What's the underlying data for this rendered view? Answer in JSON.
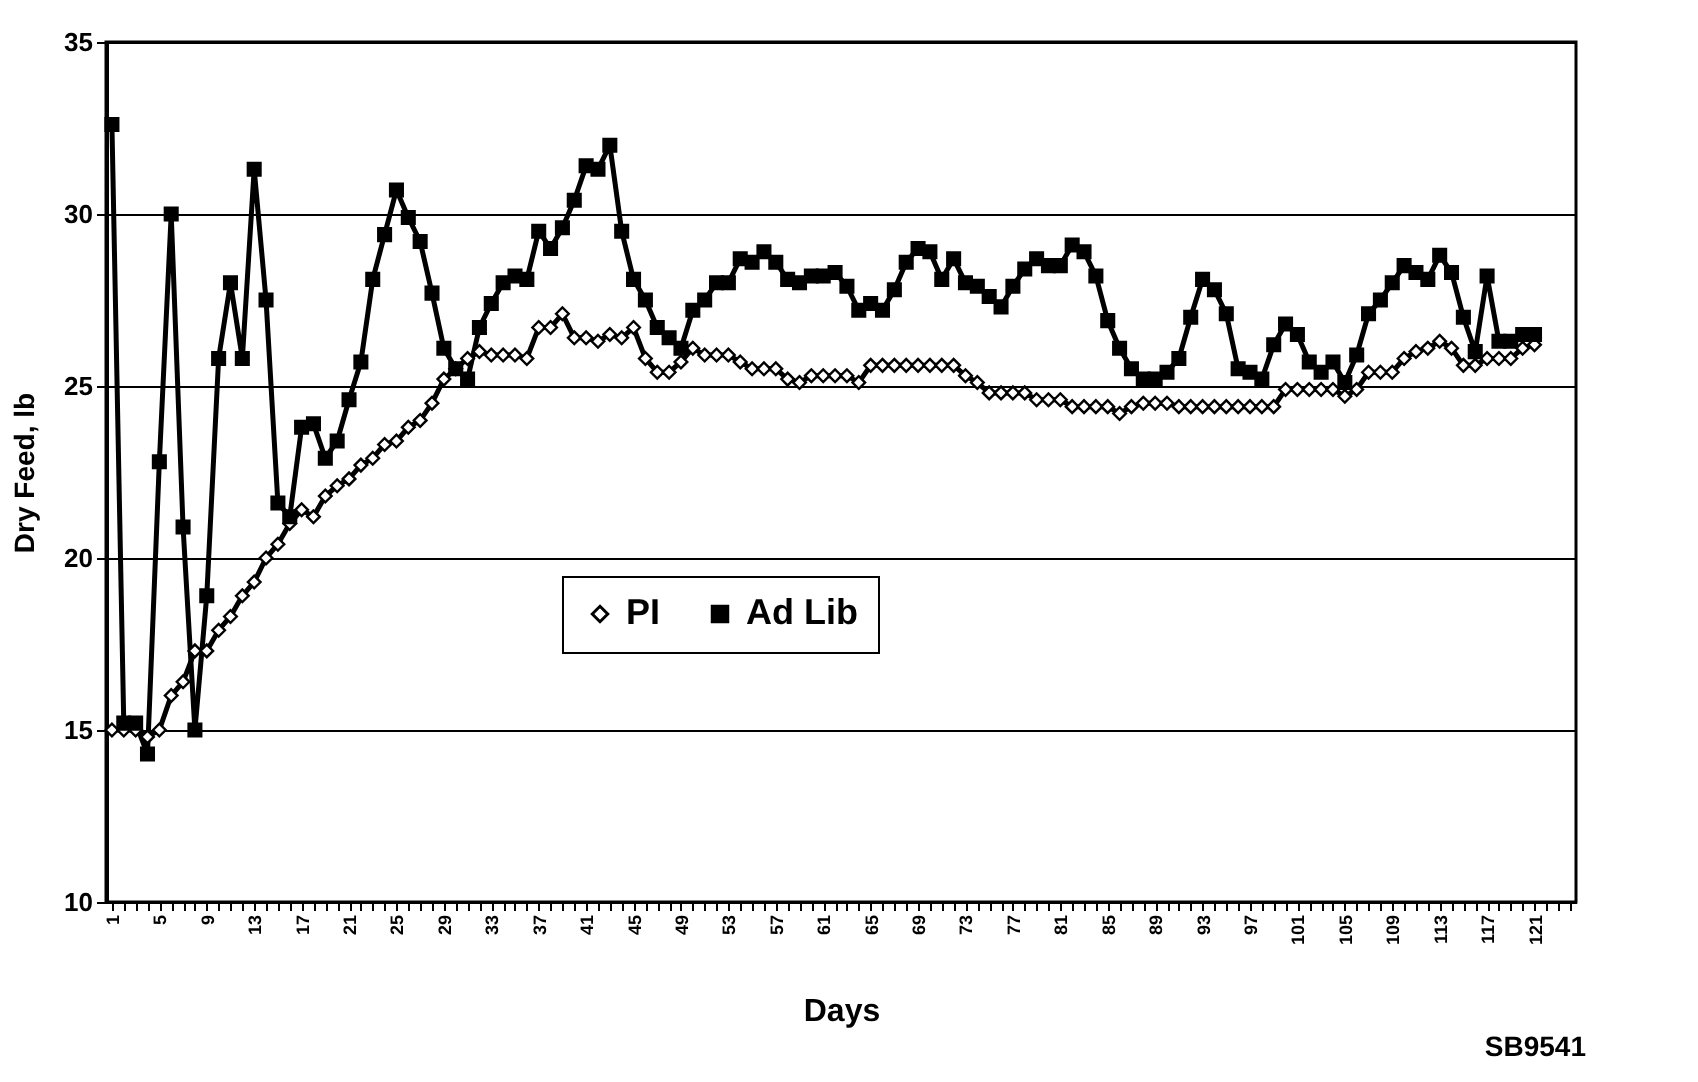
{
  "chart_data": {
    "type": "line",
    "xlabel": "Days",
    "ylabel": "Dry Feed, lb",
    "categories": [
      "1",
      null,
      null,
      null,
      "5",
      null,
      null,
      null,
      "9",
      null,
      null,
      null,
      "13",
      null,
      null,
      null,
      "17",
      null,
      null,
      null,
      "21",
      null,
      null,
      null,
      "25",
      null,
      null,
      null,
      "29",
      null,
      null,
      null,
      "33",
      null,
      null,
      null,
      "37",
      null,
      null,
      null,
      "41",
      null,
      null,
      null,
      "45",
      null,
      null,
      null,
      "49",
      null,
      null,
      null,
      "53",
      null,
      null,
      null,
      "57",
      null,
      null,
      null,
      "61",
      null,
      null,
      null,
      "65",
      null,
      null,
      null,
      "69",
      null,
      null,
      null,
      "73",
      null,
      null,
      null,
      "77",
      null,
      null,
      null,
      "81",
      null,
      null,
      null,
      "85",
      null,
      null,
      null,
      "89",
      null,
      null,
      null,
      "93",
      null,
      null,
      null,
      "97",
      null,
      null,
      null,
      "101",
      null,
      null,
      null,
      "105",
      null,
      null,
      null,
      "109",
      null,
      null,
      null,
      "113",
      null,
      null,
      null,
      "117",
      null,
      null,
      null,
      "121",
      null,
      null,
      null
    ],
    "series": [
      {
        "name": "PI",
        "color": "#000000",
        "marker": "diamond",
        "values": [
          15.0,
          15.0,
          15.0,
          14.8,
          15.0,
          16.0,
          16.4,
          17.3,
          17.3,
          17.9,
          18.3,
          18.9,
          19.3,
          20.0,
          20.4,
          21.0,
          21.4,
          21.2,
          21.8,
          22.1,
          22.3,
          22.7,
          22.9,
          23.3,
          23.4,
          23.8,
          24.0,
          24.5,
          25.2,
          25.5,
          25.8,
          26.0,
          25.9,
          25.9,
          25.9,
          25.8,
          26.7,
          26.7,
          27.1,
          26.4,
          26.4,
          26.3,
          26.5,
          26.4,
          26.7,
          25.8,
          25.4,
          25.4,
          25.7,
          26.1,
          25.9,
          25.9,
          25.9,
          25.7,
          25.5,
          25.5,
          25.5,
          25.2,
          25.1,
          25.3,
          25.3,
          25.3,
          25.3,
          25.1,
          25.6,
          25.6,
          25.6,
          25.6,
          25.6,
          25.6,
          25.6,
          25.6,
          25.3,
          25.1,
          24.8,
          24.8,
          24.8,
          24.8,
          24.6,
          24.6,
          24.6,
          24.4,
          24.4,
          24.4,
          24.4,
          24.2,
          24.4,
          24.5,
          24.5,
          24.5,
          24.4,
          24.4,
          24.4,
          24.4,
          24.4,
          24.4,
          24.4,
          24.4,
          24.4,
          24.9,
          24.9,
          24.9,
          24.9,
          24.9,
          24.7,
          24.9,
          25.4,
          25.4,
          25.4,
          25.8,
          26.0,
          26.1,
          26.3,
          26.1,
          25.6,
          25.6,
          25.8,
          25.8,
          25.8,
          26.1,
          26.2,
          null,
          null,
          null
        ]
      },
      {
        "name": "Ad Lib",
        "color": "#000000",
        "marker": "square",
        "values": [
          32.6,
          15.2,
          15.2,
          14.3,
          22.8,
          30.0,
          20.9,
          15.0,
          18.9,
          25.8,
          28.0,
          25.8,
          31.3,
          27.5,
          21.6,
          21.2,
          23.8,
          23.9,
          22.9,
          23.4,
          24.6,
          25.7,
          28.1,
          29.4,
          30.7,
          29.9,
          29.2,
          27.7,
          26.1,
          25.5,
          25.2,
          26.7,
          27.4,
          28.0,
          28.2,
          28.1,
          29.5,
          29.0,
          29.6,
          30.4,
          31.4,
          31.3,
          32.0,
          29.5,
          28.1,
          27.5,
          26.7,
          26.4,
          26.1,
          27.2,
          27.5,
          28.0,
          28.0,
          28.7,
          28.6,
          28.9,
          28.6,
          28.1,
          28.0,
          28.2,
          28.2,
          28.3,
          27.9,
          27.2,
          27.4,
          27.2,
          27.8,
          28.6,
          29.0,
          28.9,
          28.1,
          28.7,
          28.0,
          27.9,
          27.6,
          27.3,
          27.9,
          28.4,
          28.7,
          28.5,
          28.5,
          29.1,
          28.9,
          28.2,
          26.9,
          26.1,
          25.5,
          25.2,
          25.2,
          25.4,
          25.8,
          27.0,
          28.1,
          27.8,
          27.1,
          25.5,
          25.4,
          25.2,
          26.2,
          26.8,
          26.5,
          25.7,
          25.4,
          25.7,
          25.1,
          25.9,
          27.1,
          27.5,
          28.0,
          28.5,
          28.3,
          28.1,
          28.8,
          28.3,
          27.0,
          26.0,
          28.2,
          26.3,
          26.3,
          26.5,
          26.5,
          null,
          null,
          null
        ]
      }
    ],
    "ylim": [
      10,
      35
    ],
    "yticks": [
      10,
      15,
      20,
      25,
      30,
      35
    ],
    "grid": "y",
    "legend": "center",
    "line_style": "solid",
    "annotations": [
      "SB9541"
    ]
  }
}
